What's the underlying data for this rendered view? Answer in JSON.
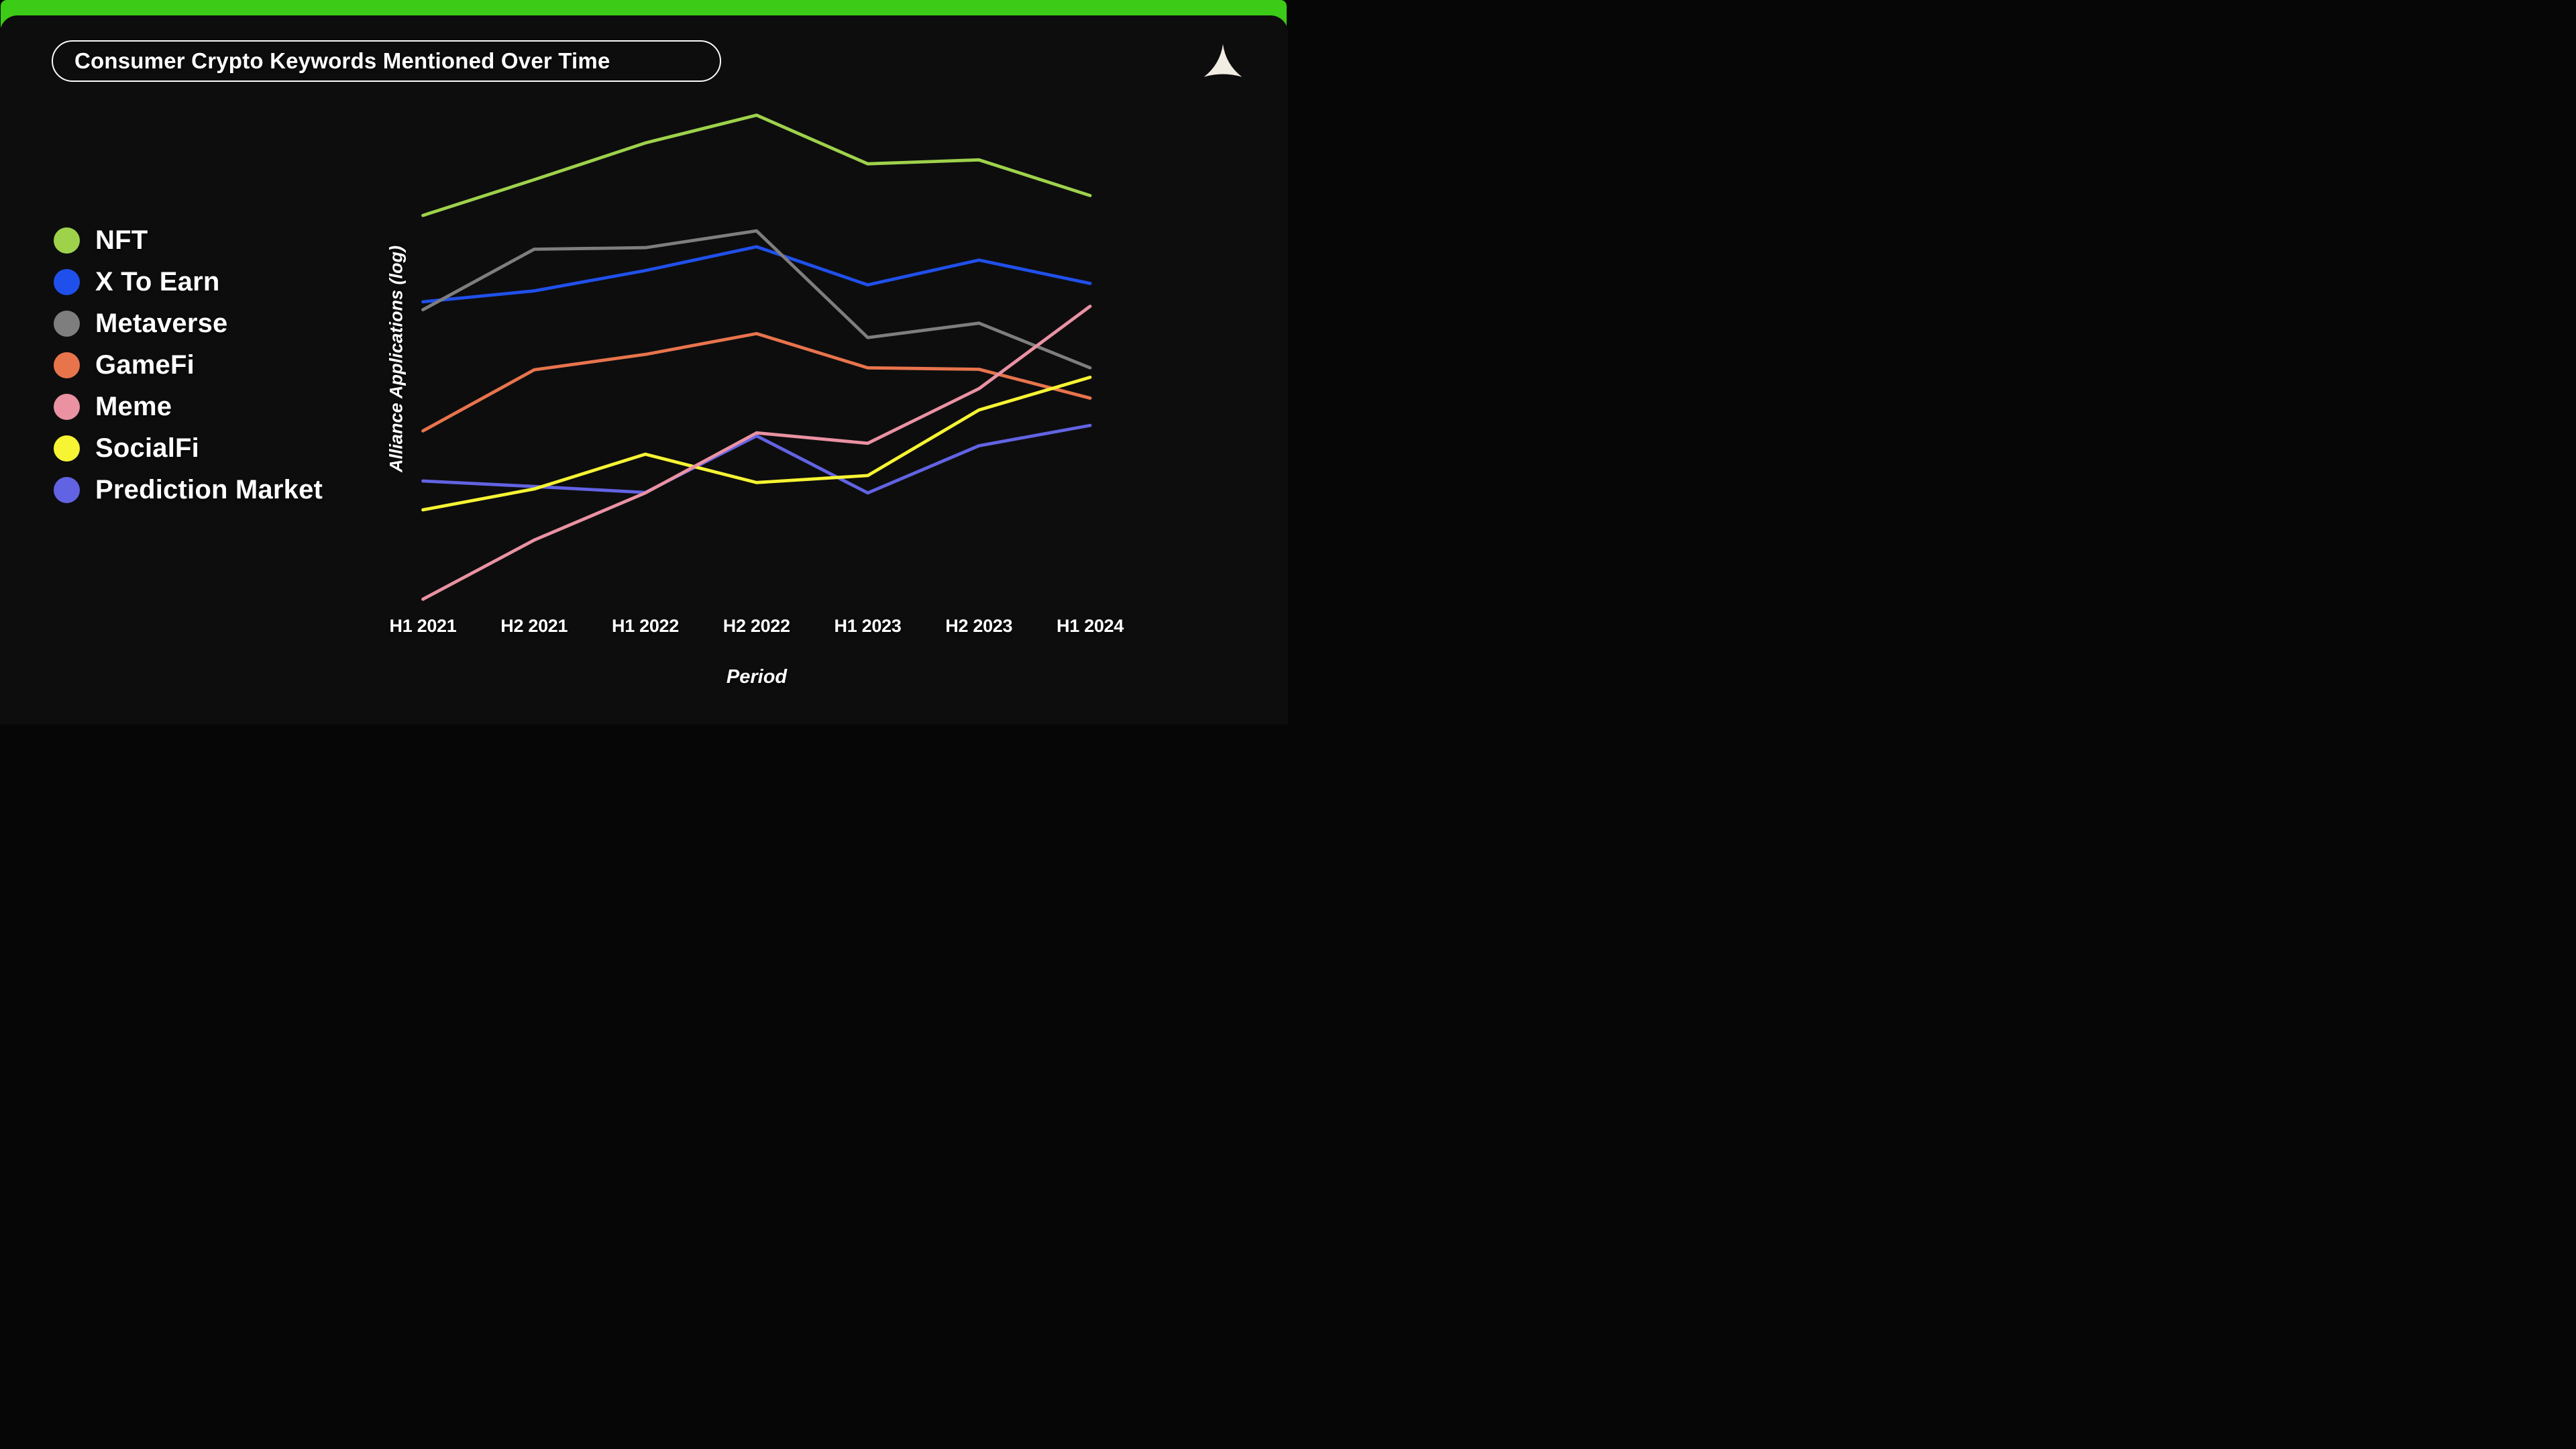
{
  "title": "Consumer Crypto Keywords Mentioned Over Time",
  "accent_bar_color": "#3ccb17",
  "panel_color": "#0d0d0e",
  "logo": {
    "name": "alliance-triangle-logo",
    "color": "#f2ede3"
  },
  "chart_data": {
    "type": "line",
    "title": "Consumer Crypto Keywords Mentioned Over Time",
    "x_categories": [
      "H1 2021",
      "H2 2021",
      "H1 2022",
      "H2 2022",
      "H1 2023",
      "H2 2023",
      "H1 2024"
    ],
    "xlabel": "Period",
    "ylabel": "Alliance Applications (log)",
    "y_axis_note": "log scale, no numeric ticks shown; values are estimated % of plot height",
    "ylim": [
      0,
      100
    ],
    "grid": false,
    "legend_position": "left",
    "series": [
      {
        "name": "NFT",
        "color": "#9ed24b",
        "values": [
          78.9,
          86.1,
          93.5,
          99.1,
          89.3,
          90.1,
          82.9
        ]
      },
      {
        "name": "X To Earn",
        "color": "#2050ec",
        "values": [
          61.5,
          63.7,
          67.8,
          72.6,
          64.9,
          69.9,
          65.2
        ]
      },
      {
        "name": "Metaverse",
        "color": "#7e7e7e",
        "values": [
          59.9,
          72.1,
          72.4,
          75.8,
          54.3,
          57.2,
          48.2
        ]
      },
      {
        "name": "GameFi",
        "color": "#e8744c",
        "values": [
          35.5,
          47.8,
          50.9,
          55.1,
          48.2,
          47.9,
          42.1
        ]
      },
      {
        "name": "Meme",
        "color": "#ea92a2",
        "values": [
          1.6,
          13.5,
          23.0,
          35.1,
          33.0,
          44.0,
          60.6
        ]
      },
      {
        "name": "SocialFi",
        "color": "#f6f433",
        "values": [
          19.6,
          23.8,
          30.8,
          25.1,
          26.5,
          39.7,
          46.3
        ]
      },
      {
        "name": "Prediction Market",
        "color": "#6263e3",
        "values": [
          25.4,
          24.3,
          23.1,
          34.5,
          23.0,
          32.5,
          36.6
        ]
      }
    ],
    "draw_order": [
      "X To Earn",
      "Prediction Market",
      "GameFi",
      "SocialFi",
      "Metaverse",
      "Meme",
      "NFT"
    ]
  }
}
